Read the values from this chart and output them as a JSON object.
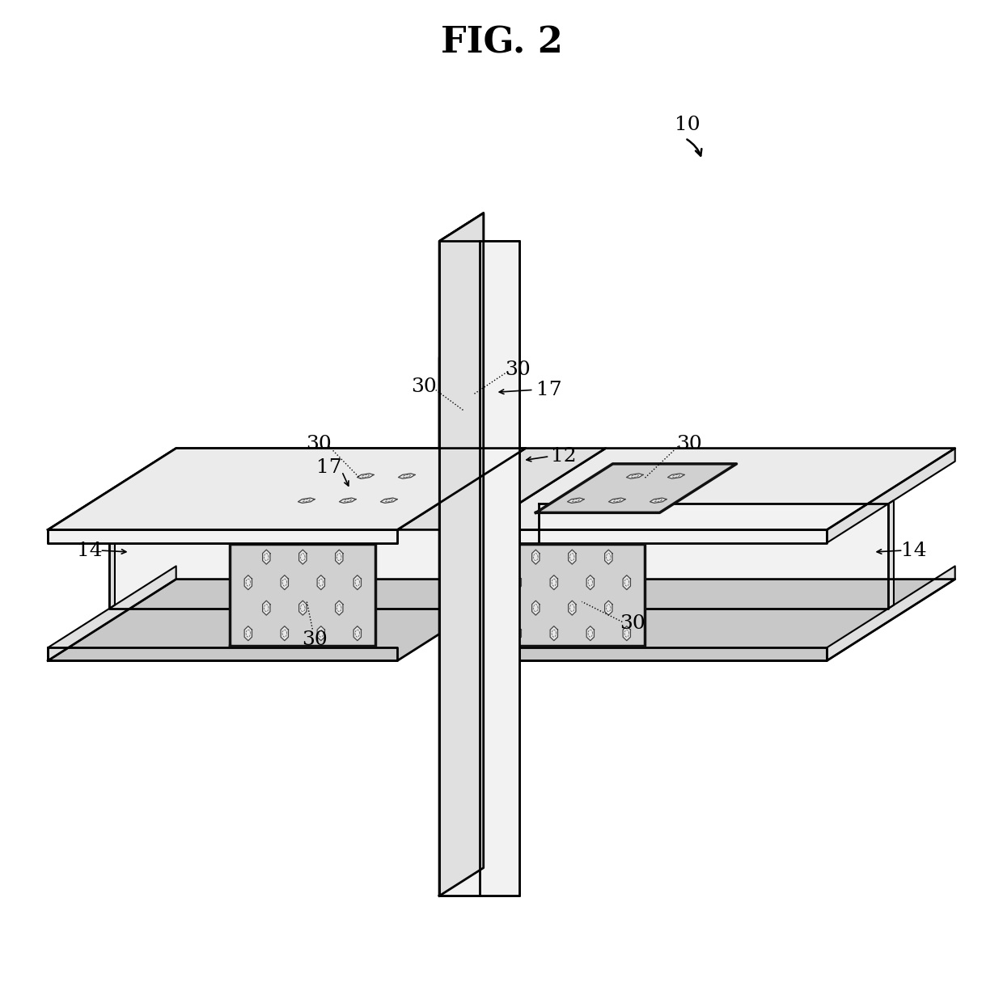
{
  "title": "FIG. 2",
  "title_fontsize": 32,
  "title_fontweight": "bold",
  "bg_color": "#ffffff",
  "line_color": "#000000",
  "face_light": "#f2f2f2",
  "face_mid": "#e0e0e0",
  "face_dark": "#c8c8c8",
  "face_top": "#ebebeb",
  "hex_fill": "#e8e8e8",
  "hex_edge": "#444444",
  "panel_fill": "#d0d0d0",
  "panel_border": "#111111",
  "label_fontsize": 18,
  "lw_main": 2.0,
  "lw_thick": 2.5,
  "lw_thin": 1.2
}
